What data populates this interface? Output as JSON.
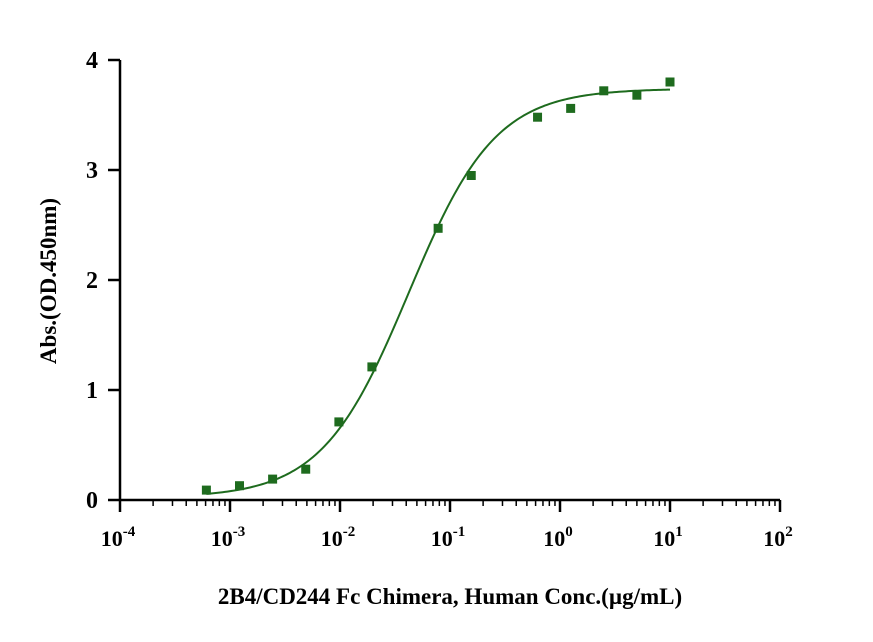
{
  "chart_data": {
    "type": "scatter",
    "title": "",
    "xlabel": "2B4/CD244 Fc Chimera, Human Conc.(µg/mL)",
    "ylabel": "Abs.(OD.450nm)",
    "x_scale": "log",
    "xlim": [
      0.0001,
      100
    ],
    "ylim": [
      0,
      4
    ],
    "x_ticks": [
      {
        "base": "10",
        "exp": "-4",
        "value": 0.0001
      },
      {
        "base": "10",
        "exp": "-3",
        "value": 0.001
      },
      {
        "base": "10",
        "exp": "-2",
        "value": 0.01
      },
      {
        "base": "10",
        "exp": "-1",
        "value": 0.1
      },
      {
        "base": "10",
        "exp": "0",
        "value": 1
      },
      {
        "base": "10",
        "exp": "1",
        "value": 10
      },
      {
        "base": "10",
        "exp": "2",
        "value": 100
      }
    ],
    "y_ticks": [
      {
        "label": "0",
        "value": 0
      },
      {
        "label": "1",
        "value": 1
      },
      {
        "label": "2",
        "value": 2
      },
      {
        "label": "3",
        "value": 3
      },
      {
        "label": "4",
        "value": 4
      }
    ],
    "grid": false,
    "legend": "none",
    "color": "#1e6b1e",
    "series": [
      {
        "marker": "square",
        "points": [
          {
            "x": 0.00061,
            "y": 0.09
          },
          {
            "x": 0.00122,
            "y": 0.13
          },
          {
            "x": 0.00244,
            "y": 0.19
          },
          {
            "x": 0.00488,
            "y": 0.28
          },
          {
            "x": 0.00977,
            "y": 0.71
          },
          {
            "x": 0.0195,
            "y": 1.21
          },
          {
            "x": 0.078,
            "y": 2.47
          },
          {
            "x": 0.156,
            "y": 2.95
          },
          {
            "x": 0.625,
            "y": 3.48
          },
          {
            "x": 1.25,
            "y": 3.56
          },
          {
            "x": 2.5,
            "y": 3.72
          },
          {
            "x": 5.0,
            "y": 3.68
          },
          {
            "x": 10.0,
            "y": 3.8
          }
        ]
      }
    ],
    "fit_curve": {
      "model": "4PL",
      "bottom": 0.02,
      "top": 3.74,
      "ec50": 0.042,
      "hill": 1.1,
      "x_range": [
        0.00061,
        10.0
      ]
    }
  }
}
